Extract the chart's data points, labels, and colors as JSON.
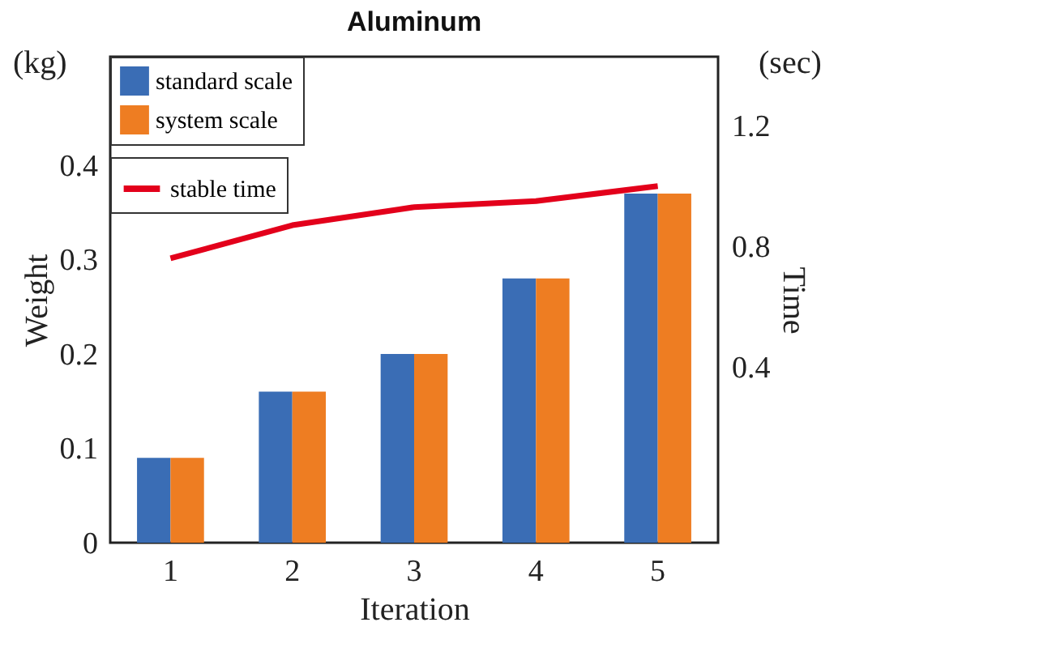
{
  "chart_data": {
    "type": "bar",
    "title": "Aluminum",
    "xlabel": "Iteration",
    "ylabel": "Weight",
    "y2label": "Time",
    "annotations": [
      "(kg)",
      "(sec)"
    ],
    "categories": [
      "1",
      "2",
      "3",
      "4",
      "5"
    ],
    "series": [
      {
        "name": "standard scale",
        "color": "#3a6db5",
        "values": [
          0.09,
          0.16,
          0.2,
          0.28,
          0.37
        ]
      },
      {
        "name": "system scale",
        "color": "#ee7d22",
        "values": [
          0.09,
          0.16,
          0.2,
          0.28,
          0.37
        ]
      },
      {
        "name": "stable time",
        "type": "line",
        "axis": "y2",
        "color": "#e3001b",
        "values": [
          0.76,
          0.87,
          0.93,
          0.95,
          1.0
        ]
      }
    ],
    "ylim": [
      0,
      0.515
    ],
    "yticks": [
      0,
      0.1,
      0.2,
      0.3,
      0.4
    ],
    "y2lim": [
      -0.185,
      1.43
    ],
    "y2ticks": [
      0.4,
      0.8,
      1.2
    ],
    "legend": "top left"
  }
}
